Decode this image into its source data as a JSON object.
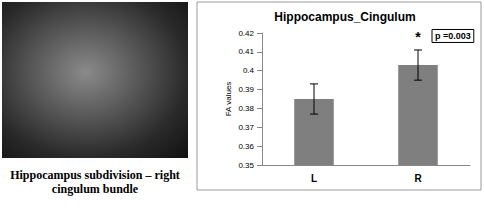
{
  "image_caption": "Hippocampus subdivision – right cingulum bundle",
  "chart_data": {
    "type": "bar",
    "title": "Hippocampus_Cingulum",
    "ylabel": "FA values",
    "categories": [
      "L",
      "R"
    ],
    "values": [
      0.385,
      0.403
    ],
    "errors": [
      0.008,
      0.008
    ],
    "color": "#7f7f7f",
    "ylim": [
      0.35,
      0.42
    ],
    "yticks": [
      0.35,
      0.36,
      0.37,
      0.38,
      0.39,
      0.4,
      0.41,
      0.42
    ],
    "annotations": [
      "*",
      "p =0.003"
    ],
    "grid": false
  }
}
